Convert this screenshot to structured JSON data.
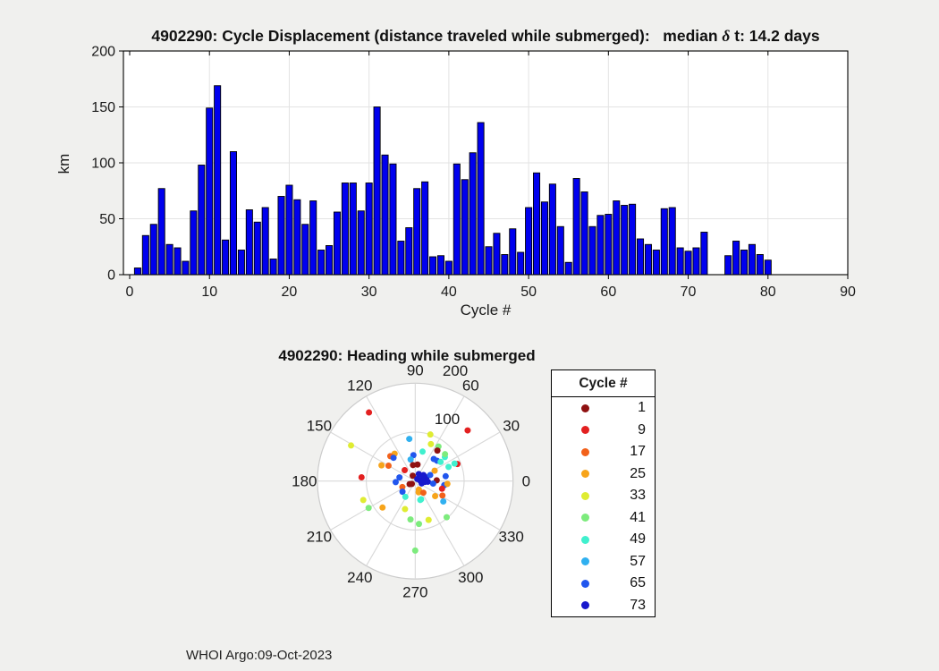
{
  "figure": {
    "background": "#F0F0EE",
    "watermark": "WHOI Argo:09-Oct-2023"
  },
  "chart_data": [
    {
      "type": "bar",
      "title": "4902290: Cycle Displacement (distance traveled while submerged):   median δ t: 14.2 days",
      "title_parts": {
        "prefix": "4902290: Cycle Displacement (distance traveled while submerged):   median ",
        "delta": "δ",
        "suffix": " t: 14.2 days"
      },
      "xlabel": "Cycle #",
      "ylabel": "km",
      "xlim": [
        -1,
        90
      ],
      "ylim": [
        0,
        200
      ],
      "xticks": [
        0,
        10,
        20,
        30,
        40,
        50,
        60,
        70,
        80,
        90
      ],
      "yticks": [
        0,
        50,
        100,
        150,
        200
      ],
      "grid": true,
      "bar_color": "#0000EE",
      "bar_edge_color": "#000000",
      "x_start_cycle": 1,
      "values": [
        6,
        35,
        45,
        77,
        27,
        24,
        12,
        57,
        98,
        149,
        169,
        31,
        110,
        22,
        58,
        47,
        60,
        14,
        70,
        80,
        67,
        45,
        66,
        22,
        26,
        56,
        82,
        82,
        57,
        82,
        150,
        107,
        99,
        30,
        42,
        77,
        83,
        16,
        17,
        12,
        99,
        85,
        109,
        136,
        25,
        37,
        18,
        41,
        20,
        60,
        91,
        65,
        81,
        43,
        11,
        86,
        74,
        43,
        53,
        54,
        66,
        62,
        63,
        32,
        27,
        22,
        59,
        60,
        24,
        21,
        24,
        38,
        null,
        null,
        17,
        30,
        22,
        27,
        18,
        13
      ]
    },
    {
      "type": "scatter-polar",
      "title": "4902290: Heading while submerged",
      "r_max": 200,
      "r_ticks": [
        100,
        200
      ],
      "theta_labels_deg": [
        0,
        30,
        60,
        90,
        120,
        150,
        180,
        210,
        240,
        270,
        300,
        330
      ],
      "legend": {
        "title": "Cycle #",
        "entries": [
          {
            "label": "1",
            "color": "#8F1111"
          },
          {
            "label": "9",
            "color": "#E32020"
          },
          {
            "label": "17",
            "color": "#F2611A"
          },
          {
            "label": "25",
            "color": "#F7A41A"
          },
          {
            "label": "33",
            "color": "#DFEC32"
          },
          {
            "label": "41",
            "color": "#7DEB7D"
          },
          {
            "label": "49",
            "color": "#40F0CE"
          },
          {
            "label": "57",
            "color": "#30B0F0"
          },
          {
            "label": "65",
            "color": "#2156EE"
          },
          {
            "label": "73",
            "color": "#1818CC"
          }
        ]
      },
      "points": [
        [
          124,
          169,
          "#E32020"
        ],
        [
          44,
          149,
          "#E32020"
        ],
        [
          151,
          150,
          "#DFEC32"
        ],
        [
          98,
          87,
          "#30B0F0"
        ],
        [
          72,
          100,
          "#DFEC32"
        ],
        [
          67,
          82,
          "#DFEC32"
        ],
        [
          56,
          85,
          "#7DEB7D"
        ],
        [
          76,
          62,
          "#40F0CE"
        ],
        [
          54,
          77,
          "#8F1111"
        ],
        [
          39,
          78,
          "#40F0CE"
        ],
        [
          127,
          70,
          "#F7A41A"
        ],
        [
          135,
          72,
          "#F2611A"
        ],
        [
          94,
          53,
          "#2156EE"
        ],
        [
          82,
          34,
          "#8F1111"
        ],
        [
          50,
          59,
          "#2156EE"
        ],
        [
          43,
          61,
          "#2156EE"
        ],
        [
          37,
          65,
          "#40F0CE"
        ],
        [
          155,
          76,
          "#F7A41A"
        ],
        [
          150,
          63,
          "#F2611A"
        ],
        [
          176,
          110,
          "#E32020"
        ],
        [
          22,
          93,
          "#E32020"
        ],
        [
          23,
          74,
          "#40F0CE"
        ],
        [
          28,
          45,
          "#F7A41A"
        ],
        [
          42,
          82,
          "#7DEB7D"
        ],
        [
          102,
          45,
          "#30B0F0"
        ],
        [
          24,
          88,
          "#40F0CE"
        ],
        [
          9,
          63,
          "#2156EE"
        ],
        [
          2,
          44,
          "#8F1111"
        ],
        [
          352,
          60,
          "#2156EE"
        ],
        [
          355,
          66,
          "#F7A41A"
        ],
        [
          344,
          57,
          "#E32020"
        ],
        [
          332,
          63,
          "#F2611A"
        ],
        [
          324,
          71,
          "#30B0F0"
        ],
        [
          323,
          51,
          "#F7A41A"
        ],
        [
          167,
          33,
          "#2156EE"
        ],
        [
          183,
          40,
          "#2156EE"
        ],
        [
          205,
          29,
          "#F2611A"
        ],
        [
          220,
          34,
          "#2156EE"
        ],
        [
          287,
          24,
          "#F7A41A"
        ],
        [
          238,
          38,
          "#40F0CE"
        ],
        [
          288,
          39,
          "#40F0CE"
        ],
        [
          134,
          31,
          "#E32020"
        ],
        [
          98,
          33,
          "#8F1111"
        ],
        [
          220,
          9,
          "#8F1111"
        ],
        [
          209,
          13,
          "#8F1111"
        ],
        [
          115,
          12,
          "#8F1111"
        ],
        [
          63,
          16,
          "#1818CC"
        ],
        [
          36,
          21,
          "#1818CC"
        ],
        [
          18,
          24,
          "#1818CC"
        ],
        [
          357,
          26,
          "#1818CC"
        ],
        [
          355,
          20,
          "#1818CC"
        ],
        [
          7,
          10,
          "#1818CC"
        ],
        [
          340,
          14,
          "#1818CC"
        ],
        [
          45,
          6,
          "#1818CC"
        ],
        [
          30,
          18,
          "#1818CC"
        ],
        [
          0,
          16,
          "#1818CC"
        ],
        [
          22,
          33,
          "#2156EE"
        ],
        [
          352,
          37,
          "#2156EE"
        ],
        [
          293,
          19,
          "#F7A41A"
        ],
        [
          305,
          29,
          "#F2611A"
        ],
        [
          285,
          40,
          "#40F0CE"
        ],
        [
          200,
          113,
          "#DFEC32"
        ],
        [
          210,
          110,
          "#7DEB7D"
        ],
        [
          219,
          86,
          "#F7A41A"
        ],
        [
          250,
          61,
          "#DFEC32"
        ],
        [
          263,
          79,
          "#7DEB7D"
        ],
        [
          289,
          84,
          "#DFEC32"
        ],
        [
          311,
          98,
          "#7DEB7D"
        ],
        [
          275,
          88,
          "#7DEB7D"
        ],
        [
          270,
          142,
          "#7DEB7D"
        ],
        [
          133,
          65,
          "#2156EE"
        ]
      ]
    }
  ]
}
